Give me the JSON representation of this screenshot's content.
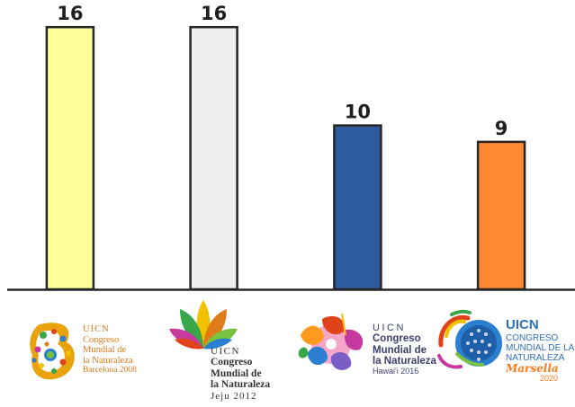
{
  "chart_data": {
    "type": "bar",
    "categories": [
      "UICN Congreso Mundial de la Naturaleza Barcelona 2008",
      "UICN Congreso Mundial de la Naturaleza Jeju 2012",
      "UICN Congreso Mundial de la Naturaleza Hawai'i 2016",
      "UICN Congreso Mundial de la Naturaleza Marsella 2020"
    ],
    "values": [
      16,
      16,
      10,
      9
    ],
    "colors": [
      "#ffff99",
      "#efefef",
      "#2e5a9e",
      "#ff8833"
    ],
    "ylim": [
      0,
      17
    ],
    "grid": false,
    "legend": "none"
  },
  "logos": [
    {
      "icon": "barcelona-2008-logo-icon",
      "lines": [
        "UICN",
        "Congreso",
        "Mundial de",
        "la Naturaleza",
        "Barcelona 2008"
      ]
    },
    {
      "icon": "jeju-2012-logo-icon",
      "lines": [
        "UICN",
        "Congreso",
        "Mundial de",
        "la Naturaleza",
        "Jeju 2012"
      ]
    },
    {
      "icon": "hawaii-2016-logo-icon",
      "lines": [
        "UICN",
        "Congreso",
        "Mundial de",
        "la Naturaleza",
        "Hawai'i 2016"
      ]
    },
    {
      "icon": "marseille-2020-logo-icon",
      "lines": [
        "UICN",
        "CONGRESO",
        "MUNDIAL DE LA",
        "NATURALEZA",
        "Marsella",
        "2020"
      ]
    }
  ]
}
